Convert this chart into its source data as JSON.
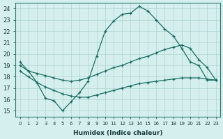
{
  "xlabel": "Humidex (Indice chaleur)",
  "bg_color": "#d4efee",
  "grid_color": "#aed4d0",
  "line_color": "#1a6e64",
  "xlim": [
    -0.5,
    23.5
  ],
  "ylim": [
    14.5,
    24.5
  ],
  "xticks": [
    0,
    1,
    2,
    3,
    4,
    5,
    6,
    7,
    8,
    9,
    10,
    11,
    12,
    13,
    14,
    15,
    16,
    17,
    18,
    19,
    20,
    21,
    22,
    23
  ],
  "yticks": [
    15,
    16,
    17,
    18,
    19,
    20,
    21,
    22,
    23,
    24
  ],
  "line1_x": [
    0,
    1,
    2,
    3,
    4,
    5,
    6,
    7,
    8,
    9,
    10,
    11,
    12,
    13,
    14,
    15,
    16,
    17,
    18,
    19,
    20,
    21,
    22,
    23
  ],
  "line1_y": [
    19.3,
    18.5,
    17.5,
    16.1,
    15.9,
    15.0,
    15.8,
    16.6,
    17.6,
    19.8,
    22.0,
    22.9,
    23.5,
    23.6,
    24.2,
    23.8,
    23.0,
    22.2,
    21.6,
    20.5,
    19.3,
    19.0,
    17.7,
    17.7
  ],
  "line2_x": [
    0,
    1,
    2,
    3,
    4,
    5,
    6,
    7,
    8,
    9,
    10,
    11,
    12,
    13,
    14,
    15,
    16,
    17,
    18,
    19,
    20,
    21,
    22,
    23
  ],
  "line2_y": [
    19.0,
    18.5,
    18.3,
    18.1,
    17.9,
    17.7,
    17.6,
    17.7,
    17.9,
    18.2,
    18.5,
    18.8,
    19.0,
    19.3,
    19.6,
    19.8,
    20.1,
    20.4,
    20.6,
    20.8,
    20.5,
    19.5,
    18.8,
    17.7
  ],
  "line3_x": [
    0,
    1,
    2,
    3,
    4,
    5,
    6,
    7,
    8,
    9,
    10,
    11,
    12,
    13,
    14,
    15,
    16,
    17,
    18,
    19,
    20,
    21,
    22,
    23
  ],
  "line3_y": [
    18.5,
    18.0,
    17.5,
    17.1,
    16.8,
    16.5,
    16.3,
    16.2,
    16.2,
    16.4,
    16.6,
    16.8,
    17.0,
    17.2,
    17.4,
    17.5,
    17.6,
    17.7,
    17.8,
    17.9,
    17.9,
    17.9,
    17.8,
    17.7
  ]
}
